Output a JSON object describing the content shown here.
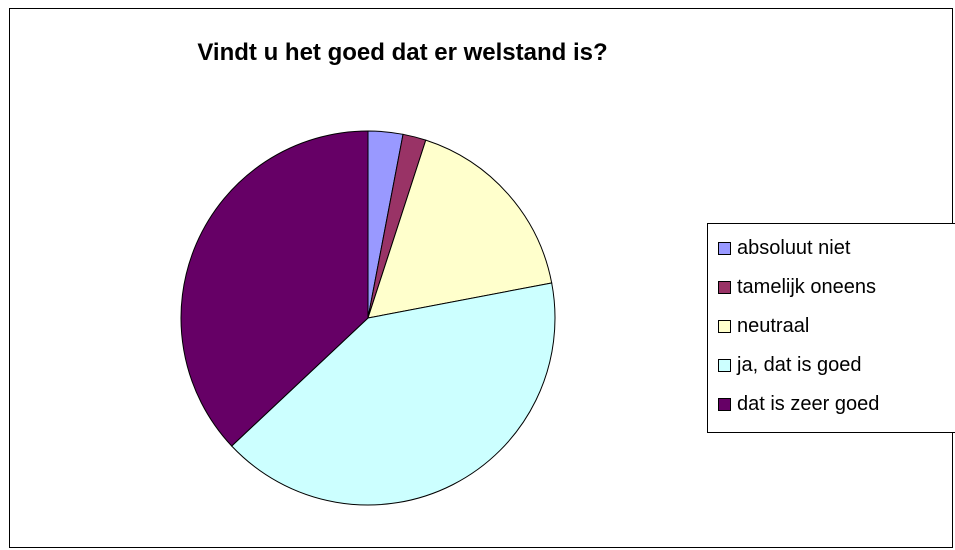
{
  "chart_data": {
    "type": "pie",
    "title": "Vindt u het goed dat er welstand is?",
    "categories": [
      "absoluut niet",
      "tamelijk oneens",
      "neutraal",
      "ja, dat is goed",
      "dat is zeer goed"
    ],
    "values": [
      3,
      2,
      17,
      41,
      37
    ],
    "colors": [
      "#9999FF",
      "#993366",
      "#FFFFCC",
      "#CCFFFF",
      "#660066"
    ],
    "legend": "right",
    "start_angle_deg": 0,
    "direction": "clockwise"
  }
}
